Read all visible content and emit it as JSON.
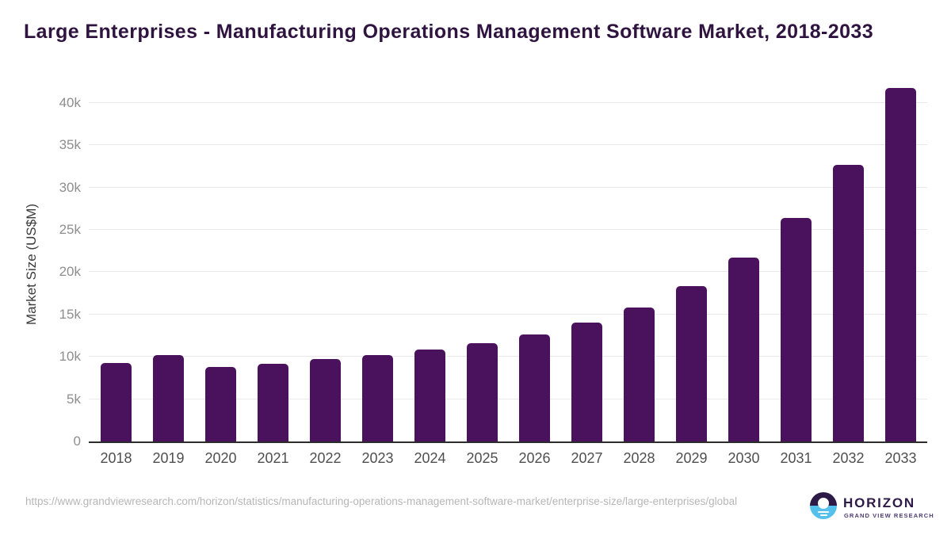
{
  "header": {
    "title": "Large Enterprises - Manufacturing Operations Management Software Market, 2018-2033"
  },
  "chart_data": {
    "type": "bar",
    "title": "Large Enterprises - Manufacturing Operations Management Software Market, 2018-2033",
    "categories": [
      "2018",
      "2019",
      "2020",
      "2021",
      "2022",
      "2023",
      "2024",
      "2025",
      "2026",
      "2027",
      "2028",
      "2029",
      "2030",
      "2031",
      "2032",
      "2033"
    ],
    "values": [
      9300,
      10250,
      8800,
      9200,
      9700,
      10200,
      10850,
      11600,
      12600,
      14000,
      15800,
      18350,
      21700,
      26450,
      32700,
      41800
    ],
    "xlabel": "",
    "ylabel": "Market Size (US$M)",
    "ylim": [
      0,
      42000
    ],
    "y_tick_interval": 5000,
    "y_tick_labels": [
      "0",
      "5k",
      "10k",
      "15k",
      "20k",
      "25k",
      "30k",
      "35k",
      "40k"
    ],
    "grid": "horizontal",
    "legend": "none",
    "bar_color": "#4A115C"
  },
  "footer": {
    "source_url": "https://www.grandviewresearch.com/horizon/statistics/manufacturing-operations-management-software-market/enterprise-size/large-enterprises/global",
    "logo": {
      "brand": "HORIZON",
      "tagline": "GRAND VIEW RESEARCH",
      "icon": "horizon-sun-logo"
    }
  },
  "colors": {
    "bar": "#4A115C",
    "title_text": "#2F1440",
    "axis_line": "#2d2d2d",
    "gridline": "#e9e9e9",
    "y_tick_text": "#8e8e8e",
    "x_tick_text": "#4f4f4f",
    "url_text": "#b6b6b6",
    "logo_dark": "#2E1A47",
    "logo_blue": "#55C0EB"
  }
}
